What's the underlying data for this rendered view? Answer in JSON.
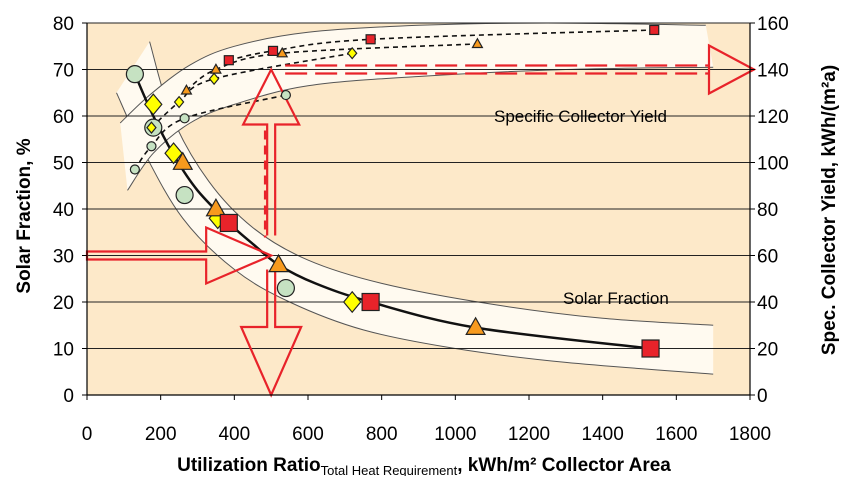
{
  "chart_data": {
    "type": "scatter",
    "xlabel": {
      "main": "Utilization Ratio",
      "sub": "Total Heat Requirement",
      "rest": ", kWh/m² Collector Area"
    },
    "ylabel_left": "Solar Fraction, %",
    "ylabel_right": "Spec. Collector Yield, kWh/(m²a)",
    "xlim": [
      0,
      1800
    ],
    "ylim_left": [
      0,
      80
    ],
    "ylim_right": [
      0,
      160
    ],
    "x_ticks": [
      "0",
      "200",
      "400",
      "600",
      "800",
      "1000",
      "1200",
      "1400",
      "1600",
      "1800"
    ],
    "y_ticks_left": [
      "0",
      "10",
      "20",
      "30",
      "40",
      "50",
      "60",
      "70",
      "80"
    ],
    "y_ticks_right": [
      "0",
      "20",
      "40",
      "60",
      "80",
      "100",
      "120",
      "140",
      "160"
    ],
    "grid": "horizontal",
    "plot_background": "#fde9c9",
    "band_color": "#fffaf0",
    "arrow_color": "#e8232a",
    "annotations": {
      "yield": "Specific Collector Yield",
      "fraction": "Solar Fraction"
    },
    "bands": {
      "fraction": {
        "upper": [
          [
            170,
            76
          ],
          [
            230,
            60
          ],
          [
            330,
            46
          ],
          [
            450,
            36
          ],
          [
            600,
            29
          ],
          [
            800,
            24
          ],
          [
            1100,
            19.5
          ],
          [
            1400,
            16.5
          ],
          [
            1700,
            15
          ]
        ],
        "lower": [
          [
            80,
            65
          ],
          [
            150,
            53
          ],
          [
            260,
            38
          ],
          [
            400,
            27
          ],
          [
            550,
            20
          ],
          [
            750,
            14
          ],
          [
            1000,
            10
          ],
          [
            1300,
            7
          ],
          [
            1700,
            4.5
          ]
        ]
      },
      "yield": {
        "upper": [
          [
            90,
            117
          ],
          [
            170,
            129
          ],
          [
            280,
            142
          ],
          [
            400,
            150
          ],
          [
            600,
            156
          ],
          [
            900,
            159
          ],
          [
            1250,
            160
          ],
          [
            1680,
            159
          ]
        ],
        "lower": [
          [
            110,
            88
          ],
          [
            180,
            104
          ],
          [
            280,
            117
          ],
          [
            400,
            125
          ],
          [
            600,
            133
          ],
          [
            900,
            137
          ],
          [
            1300,
            140
          ],
          [
            1700,
            141
          ]
        ]
      }
    },
    "series": [
      {
        "marker": "circle",
        "color": "#c6e2c2",
        "fraction": [
          [
            130,
            69
          ],
          [
            180,
            57.5
          ],
          [
            265,
            43
          ],
          [
            540,
            23
          ]
        ],
        "yield": [
          [
            130,
            97
          ],
          [
            175,
            107
          ],
          [
            265,
            119
          ],
          [
            540,
            129
          ]
        ]
      },
      {
        "marker": "diamond",
        "color": "#ffff00",
        "fraction": [
          [
            180,
            62.5
          ],
          [
            235,
            52
          ],
          [
            355,
            38
          ],
          [
            720,
            20
          ]
        ],
        "yield": [
          [
            175,
            115
          ],
          [
            250,
            126
          ],
          [
            345,
            136
          ],
          [
            720,
            147
          ]
        ]
      },
      {
        "marker": "triangle",
        "color": "#f79a1e",
        "fraction": [
          [
            260,
            50
          ],
          [
            350,
            40
          ],
          [
            520,
            28
          ],
          [
            1055,
            14.5
          ]
        ],
        "yield": [
          [
            270,
            131
          ],
          [
            350,
            140
          ],
          [
            530,
            147
          ],
          [
            1060,
            151
          ]
        ]
      },
      {
        "marker": "square",
        "color": "#e8232a",
        "fraction": [
          [
            385,
            37
          ],
          [
            770,
            20
          ],
          [
            1530,
            10
          ]
        ],
        "yield": [
          [
            385,
            144
          ],
          [
            505,
            148
          ],
          [
            770,
            153
          ],
          [
            1540,
            157
          ]
        ]
      }
    ],
    "fraction_line": [
      [
        130,
        69
      ],
      [
        180,
        60
      ],
      [
        240,
        51
      ],
      [
        300,
        44
      ],
      [
        385,
        37
      ],
      [
        450,
        32.5
      ],
      [
        520,
        28
      ],
      [
        620,
        24
      ],
      [
        770,
        20
      ],
      [
        1055,
        14.5
      ],
      [
        1530,
        10
      ]
    ]
  }
}
